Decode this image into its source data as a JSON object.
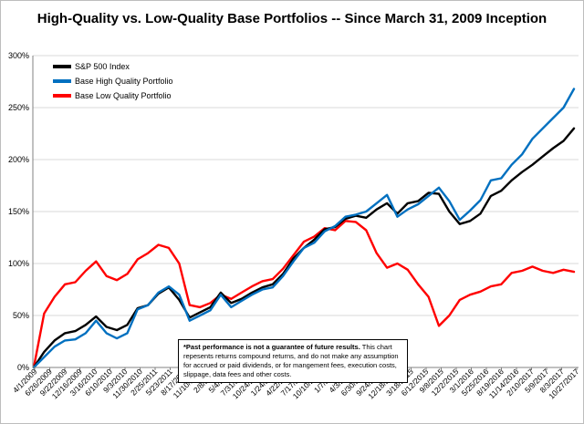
{
  "chart_data": {
    "type": "line",
    "title": "High-Quality vs. Low-Quality Base Portfolios -- Since March 31, 2009 Inception",
    "xlabel": "",
    "ylabel": "",
    "ylim": [
      0,
      300
    ],
    "yticks": [
      "0%",
      "50%",
      "100%",
      "150%",
      "200%",
      "250%",
      "300%"
    ],
    "grid": true,
    "legend_position": "top-left",
    "x_tick_labels": [
      "4/1/2009",
      "6/26/2009",
      "9/22/2009",
      "12/16/2009",
      "3/16/2010",
      "6/10/2010",
      "9/3/2010",
      "11/30/2010",
      "2/25/2011",
      "5/23/2011",
      "8/17/2011",
      "11/10/2011",
      "2/8/2012",
      "5/4/2012",
      "7/31/2012",
      "10/24/2012",
      "1/24/2013",
      "4/22/2013",
      "7/17/2013",
      "10/10/2013",
      "1/7/2014",
      "4/3/2014",
      "6/30/2014",
      "9/24/2014",
      "12/18/2014",
      "3/18/2015",
      "6/12/2015",
      "9/8/2015",
      "12/2/2015",
      "3/1/2016",
      "5/25/2016",
      "8/19/2016",
      "11/14/2016",
      "2/10/2017",
      "5/9/2017",
      "8/3/2017",
      "10/27/2017"
    ],
    "series": [
      {
        "name": "S&P 500 Index",
        "color": "#000000",
        "values": [
          0,
          15,
          26,
          33,
          35,
          41,
          49,
          39,
          36,
          41,
          57,
          60,
          71,
          77,
          65,
          48,
          53,
          58,
          72,
          62,
          66,
          72,
          77,
          80,
          90,
          105,
          115,
          123,
          133,
          135,
          143,
          146,
          144,
          152,
          158,
          148,
          158,
          160,
          168,
          167,
          150,
          138,
          141,
          148,
          165,
          170,
          180,
          188,
          195,
          203,
          211,
          218,
          230
        ]
      },
      {
        "name": "Base High Quality Portfolio",
        "color": "#0070c0",
        "values": [
          0,
          10,
          20,
          26,
          27,
          33,
          45,
          33,
          28,
          33,
          56,
          60,
          72,
          78,
          70,
          45,
          50,
          55,
          70,
          58,
          64,
          70,
          75,
          77,
          88,
          102,
          115,
          120,
          131,
          136,
          145,
          147,
          150,
          158,
          166,
          145,
          152,
          157,
          165,
          173,
          160,
          142,
          151,
          161,
          180,
          182,
          195,
          205,
          220,
          230,
          240,
          250,
          268
        ]
      },
      {
        "name": "Base Low Quality Portfolio",
        "color": "#ff0000",
        "values": [
          0,
          52,
          68,
          80,
          82,
          93,
          102,
          88,
          84,
          90,
          104,
          110,
          118,
          115,
          100,
          60,
          58,
          62,
          70,
          66,
          72,
          78,
          83,
          85,
          95,
          108,
          121,
          126,
          134,
          132,
          141,
          140,
          132,
          110,
          96,
          100,
          94,
          80,
          68,
          40,
          50,
          65,
          70,
          73,
          78,
          80,
          91,
          93,
          97,
          93,
          91,
          94,
          92
        ]
      }
    ],
    "annotation": {
      "bold": "*Past performance is not a guarantee of future results.",
      "text": " This chart repesents returns compound returns, and do not make any assumption for accrued or paid dividends, or for mangement fees, execution costs, slippage, data fees and other costs."
    }
  }
}
